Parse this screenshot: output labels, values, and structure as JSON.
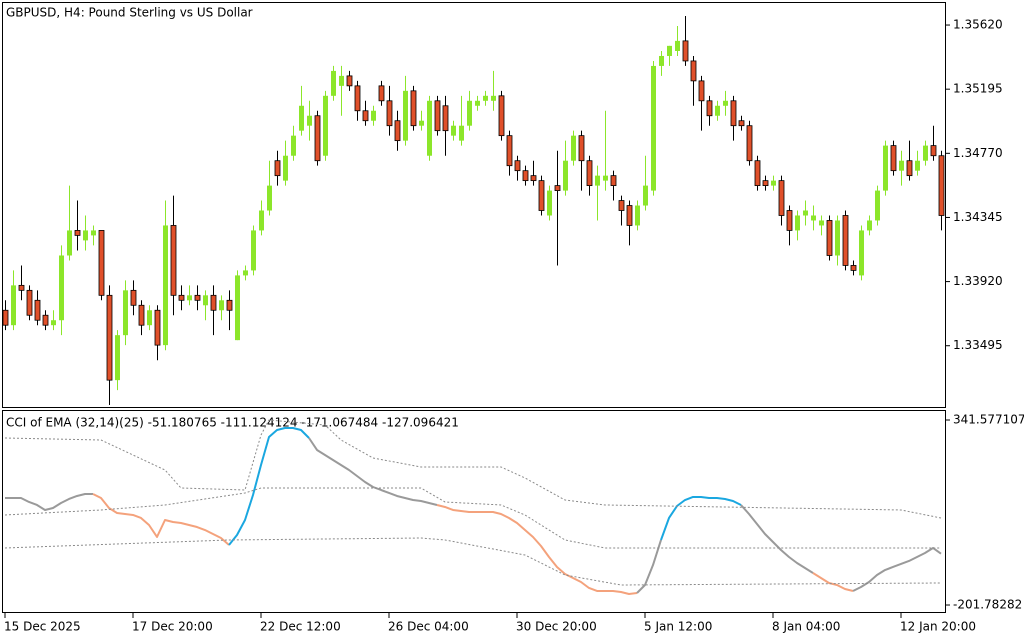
{
  "chart_data": [
    {
      "type": "candlestick",
      "title": "GBPUSD, H4:  Pound Sterling vs US Dollar",
      "categories": [
        "15 Dec 2025",
        null,
        null,
        null,
        null,
        null,
        null,
        null,
        null,
        null,
        null,
        null,
        null,
        null,
        null,
        null,
        "17 Dec 20:00",
        null,
        null,
        null,
        null,
        null,
        null,
        null,
        null,
        null,
        null,
        null,
        null,
        null,
        null,
        null,
        "22 Dec 12:00",
        null,
        null,
        null,
        null,
        null,
        null,
        null,
        null,
        null,
        null,
        null,
        null,
        null,
        null,
        null,
        "26 Dec 04:00",
        null,
        null,
        null,
        null,
        null,
        null,
        null,
        null,
        null,
        null,
        null,
        null,
        null,
        null,
        null,
        "30 Dec 20:00",
        null,
        null,
        null,
        null,
        null,
        null,
        null,
        null,
        null,
        null,
        null,
        null,
        null,
        null,
        null,
        "5 Jan 12:00",
        null,
        null,
        null,
        null,
        null,
        null,
        null,
        null,
        null,
        null,
        null,
        null,
        null,
        null,
        null,
        "8 Jan 04:00",
        null,
        null,
        null,
        null,
        null,
        null,
        null,
        null,
        null,
        null,
        null,
        null,
        null,
        null,
        null,
        "12 Jan 20:00",
        null,
        null,
        null,
        null,
        null
      ],
      "open": [
        1.3373,
        1.33631,
        1.33895,
        1.33862,
        1.33796,
        1.33697,
        1.33631,
        1.33664,
        1.34093,
        1.34259,
        1.34193,
        1.34226,
        1.34259,
        1.33829,
        1.33267,
        1.33565,
        1.33862,
        1.33763,
        1.33631,
        1.3373,
        1.33499,
        1.34292,
        1.33829,
        1.33796,
        1.33829,
        1.33763,
        1.33829,
        1.3373,
        1.33796,
        1.33532,
        1.33961,
        1.33994,
        1.34259,
        1.34391,
        1.34721,
        1.34589,
        1.34754,
        1.3492,
        1.34953,
        1.35019,
        1.34754,
        1.35151,
        1.35217,
        1.35283,
        1.35217,
        1.35052,
        1.34986,
        1.35217,
        1.35118,
        1.34986,
        1.34854,
        1.35184,
        1.34953,
        1.34754,
        1.35118,
        1.35085,
        1.34887,
        1.34854,
        1.34953,
        1.35085,
        1.35118,
        1.35118,
        1.35151,
        1.34887,
        1.34721,
        1.34655,
        1.34622,
        1.34589,
        1.34358,
        1.34556,
        1.34523,
        1.34721,
        1.34887,
        1.34721,
        1.34556,
        1.34589,
        1.34622,
        1.34457,
        1.34424,
        1.34292,
        1.34424,
        1.34523,
        1.35349,
        1.35415,
        1.35448,
        1.35515,
        1.35382,
        1.3525,
        1.35118,
        1.35019,
        1.35085,
        1.35118,
        1.34986,
        1.34953,
        1.34721,
        1.34589,
        1.34556,
        1.34589,
        1.34391,
        1.34259,
        1.34358,
        1.34325,
        1.34292,
        1.34325,
        1.34093,
        1.34358,
        1.34027,
        1.33961,
        1.34259,
        1.34325,
        1.34523,
        1.34821,
        1.34655,
        1.34721,
        1.34655,
        1.34721,
        1.34821,
        1.34754
      ],
      "high": [
        1.33796,
        1.33994,
        1.34027,
        1.33895,
        1.33862,
        1.3373,
        1.3373,
        1.3416,
        1.34556,
        1.34457,
        1.34358,
        1.34292,
        1.34259,
        1.33895,
        1.33598,
        1.33928,
        1.33928,
        1.33796,
        1.33763,
        1.33763,
        1.34457,
        1.3449,
        1.33895,
        1.33895,
        1.33895,
        1.33862,
        1.33895,
        1.33829,
        1.33862,
        1.33994,
        1.34027,
        1.34292,
        1.34457,
        1.34721,
        1.34787,
        1.34854,
        1.34953,
        1.35217,
        1.35118,
        1.35052,
        1.35184,
        1.35349,
        1.35349,
        1.35316,
        1.3525,
        1.35118,
        1.35085,
        1.3525,
        1.35217,
        1.35052,
        1.35283,
        1.35217,
        1.35052,
        1.35151,
        1.35151,
        1.35151,
        1.34986,
        1.35151,
        1.35184,
        1.35151,
        1.35184,
        1.35316,
        1.35184,
        1.3492,
        1.34754,
        1.34688,
        1.34721,
        1.34622,
        1.34556,
        1.34787,
        1.34854,
        1.3492,
        1.3492,
        1.34754,
        1.34688,
        1.35052,
        1.34655,
        1.3449,
        1.34457,
        1.34457,
        1.34754,
        1.35382,
        1.35448,
        1.35482,
        1.35614,
        1.3568,
        1.35415,
        1.35283,
        1.35151,
        1.35118,
        1.35184,
        1.35151,
        1.35019,
        1.34986,
        1.34754,
        1.34622,
        1.34622,
        1.34622,
        1.34424,
        1.34391,
        1.34457,
        1.34424,
        1.34358,
        1.34358,
        1.34358,
        1.34391,
        1.3406,
        1.34292,
        1.34358,
        1.34556,
        1.34854,
        1.34854,
        1.34787,
        1.34854,
        1.34787,
        1.34854,
        1.34953,
        1.34787
      ],
      "low": [
        1.33598,
        1.33598,
        1.33796,
        1.33664,
        1.33631,
        1.33598,
        1.33598,
        1.33565,
        1.3406,
        1.34126,
        1.34126,
        1.3416,
        1.33796,
        1.33102,
        1.33201,
        1.33499,
        1.33697,
        1.33565,
        1.33598,
        1.33399,
        1.33465,
        1.33697,
        1.3373,
        1.33763,
        1.3373,
        1.33664,
        1.33565,
        1.33664,
        1.33598,
        1.33532,
        1.33928,
        1.33961,
        1.34226,
        1.34358,
        1.34556,
        1.34556,
        1.34721,
        1.34887,
        1.34854,
        1.34688,
        1.34721,
        1.35118,
        1.35019,
        1.35184,
        1.34986,
        1.34953,
        1.34953,
        1.35085,
        1.34887,
        1.34787,
        1.34821,
        1.3492,
        1.3492,
        1.34721,
        1.34887,
        1.34754,
        1.34854,
        1.34821,
        1.3492,
        1.35052,
        1.35085,
        1.35052,
        1.34854,
        1.34622,
        1.34589,
        1.34556,
        1.34556,
        1.34358,
        1.34325,
        1.34027,
        1.3449,
        1.34688,
        1.34523,
        1.3449,
        1.34325,
        1.34523,
        1.34457,
        1.34292,
        1.3416,
        1.34259,
        1.34391,
        1.3449,
        1.35283,
        1.35349,
        1.35415,
        1.35349,
        1.35085,
        1.3492,
        1.34953,
        1.34986,
        1.35019,
        1.34854,
        1.3492,
        1.34688,
        1.34523,
        1.34523,
        1.34523,
        1.34292,
        1.3416,
        1.34193,
        1.34292,
        1.34259,
        1.34226,
        1.3406,
        1.34027,
        1.33994,
        1.33961,
        1.33928,
        1.34226,
        1.34292,
        1.3449,
        1.34622,
        1.34556,
        1.34589,
        1.34622,
        1.34688,
        1.34721,
        1.34259
      ],
      "close": [
        1.33631,
        1.33895,
        1.33862,
        1.33697,
        1.33664,
        1.33631,
        1.33664,
        1.34093,
        1.34259,
        1.34226,
        1.34259,
        1.34259,
        1.33829,
        1.33267,
        1.33565,
        1.33862,
        1.33763,
        1.33631,
        1.3373,
        1.33499,
        1.34292,
        1.33829,
        1.33796,
        1.33829,
        1.33796,
        1.33829,
        1.3373,
        1.33796,
        1.3373,
        1.33961,
        1.33994,
        1.34259,
        1.34391,
        1.34556,
        1.34622,
        1.34754,
        1.34887,
        1.35085,
        1.35019,
        1.34721,
        1.35151,
        1.35316,
        1.35283,
        1.35217,
        1.35052,
        1.34986,
        1.35052,
        1.35118,
        1.34953,
        1.34854,
        1.35184,
        1.34953,
        1.34986,
        1.35118,
        1.3492,
        1.3492,
        1.34953,
        1.34953,
        1.35118,
        1.35118,
        1.35151,
        1.35151,
        1.34887,
        1.34688,
        1.34655,
        1.34589,
        1.34589,
        1.34391,
        1.34523,
        1.34523,
        1.34721,
        1.34887,
        1.34721,
        1.34556,
        1.34622,
        1.34622,
        1.34556,
        1.34391,
        1.34292,
        1.34424,
        1.34556,
        1.35349,
        1.35415,
        1.35482,
        1.35515,
        1.35382,
        1.3525,
        1.35118,
        1.35019,
        1.35085,
        1.35118,
        1.34953,
        1.34953,
        1.34721,
        1.34556,
        1.34556,
        1.34589,
        1.34358,
        1.34259,
        1.34358,
        1.34391,
        1.34358,
        1.34325,
        1.34093,
        1.34325,
        1.34027,
        1.33994,
        1.34259,
        1.34325,
        1.34523,
        1.34821,
        1.34655,
        1.34721,
        1.34622,
        1.34721,
        1.34821,
        1.34754,
        1.34358
      ],
      "bull_color": "#8ce62a",
      "bear_color": "#e0502a",
      "bear_edge": "#000000",
      "ylim": [
        1.33089,
        1.35766
      ],
      "yticks": [
        {
          "value": 1.3562,
          "label": "1.35620"
        },
        1.35195,
        {
          "value": 1.3477,
          "label": "1.34770"
        },
        1.34345,
        {
          "value": 1.3392,
          "label": "1.33920"
        },
        1.33495
      ]
    },
    {
      "type": "indicator",
      "title": "CCI of EMA (32,14)(25) -51.180765 -111.124124 -171.067484 -127.096421",
      "ylim": [
        -222.3,
        368.0
      ],
      "yticks": [
        341.577107,
        -201.78282
      ],
      "series": [
        {
          "values": [
            112.5,
            112.5,
            112.5,
            100.8,
            92.0,
            77.3,
            83.1,
            97.8,
            109.6,
            118.4,
            124.3,
            124.3,
            112.5,
            83.1,
            68.5,
            65.5,
            62.6,
            53.8,
            33.2,
            -2.0,
            47.9,
            42.0,
            39.1,
            33.2,
            27.3,
            18.5,
            6.8,
            -5.0,
            -25.5,
            3.8,
            47.9,
            121.3,
            209.4,
            291.7,
            312.2,
            318.1,
            318.1,
            312.2,
            288.7,
            253.5,
            238.8,
            224.1,
            209.4,
            194.7,
            177.1,
            159.5,
            144.8,
            136.0,
            127.2,
            118.4,
            112.5,
            106.6,
            103.7,
            97.8,
            92.0,
            86.1,
            77.3,
            74.3,
            71.4,
            71.4,
            71.4,
            71.4,
            65.5,
            53.8,
            39.1,
            18.5,
            -2.0,
            -28.5,
            -60.8,
            -90.1,
            -110.7,
            -122.4,
            -134.2,
            -151.8,
            -160.6,
            -160.6,
            -160.6,
            -163.6,
            -169.4,
            -166.5,
            -143.0,
            -84.3,
            -10.8,
            53.8,
            89.0,
            106.6,
            115.5,
            115.5,
            112.5,
            112.5,
            109.6,
            103.7,
            92.0,
            65.5,
            36.2,
            6.8,
            -16.7,
            -40.2,
            -60.8,
            -78.4,
            -93.1,
            -107.8,
            -122.4,
            -137.1,
            -143.0,
            -154.8,
            -160.6,
            -148.9,
            -134.2,
            -113.6,
            -99.0,
            -90.1,
            -81.3,
            -72.5,
            -60.8,
            -49.0,
            -34.3,
            -51.180765
          ],
          "colors": [
            "#9a9a9a",
            "#9a9a9a",
            "#9a9a9a",
            "#9a9a9a",
            "#9a9a9a",
            "#9a9a9a",
            "#9a9a9a",
            "#9a9a9a",
            "#9a9a9a",
            "#9a9a9a",
            "#9a9a9a",
            "#9a9a9a",
            "#f4a27c",
            "#f4a27c",
            "#f4a27c",
            "#f4a27c",
            "#f4a27c",
            "#f4a27c",
            "#f4a27c",
            "#f4a27c",
            "#f4a27c",
            "#f4a27c",
            "#f4a27c",
            "#f4a27c",
            "#f4a27c",
            "#f4a27c",
            "#f4a27c",
            "#f4a27c",
            "#f4a27c",
            "#1aa7e0",
            "#1aa7e0",
            "#1aa7e0",
            "#1aa7e0",
            "#1aa7e0",
            "#1aa7e0",
            "#1aa7e0",
            "#1aa7e0",
            "#1aa7e0",
            "#1aa7e0",
            "#9a9a9a",
            "#9a9a9a",
            "#9a9a9a",
            "#9a9a9a",
            "#9a9a9a",
            "#9a9a9a",
            "#9a9a9a",
            "#9a9a9a",
            "#9a9a9a",
            "#9a9a9a",
            "#9a9a9a",
            "#9a9a9a",
            "#9a9a9a",
            "#9a9a9a",
            "#9a9a9a",
            "#9a9a9a",
            "#f4a27c",
            "#f4a27c",
            "#f4a27c",
            "#f4a27c",
            "#f4a27c",
            "#f4a27c",
            "#f4a27c",
            "#f4a27c",
            "#f4a27c",
            "#f4a27c",
            "#f4a27c",
            "#f4a27c",
            "#f4a27c",
            "#f4a27c",
            "#f4a27c",
            "#f4a27c",
            "#f4a27c",
            "#f4a27c",
            "#f4a27c",
            "#f4a27c",
            "#f4a27c",
            "#f4a27c",
            "#f4a27c",
            "#f4a27c",
            "#f4a27c",
            "#9a9a9a",
            "#9a9a9a",
            "#9a9a9a",
            "#1aa7e0",
            "#1aa7e0",
            "#1aa7e0",
            "#1aa7e0",
            "#1aa7e0",
            "#1aa7e0",
            "#1aa7e0",
            "#1aa7e0",
            "#1aa7e0",
            "#1aa7e0",
            "#9a9a9a",
            "#9a9a9a",
            "#9a9a9a",
            "#9a9a9a",
            "#9a9a9a",
            "#9a9a9a",
            "#9a9a9a",
            "#9a9a9a",
            "#9a9a9a",
            "#f4a27c",
            "#f4a27c",
            "#f4a27c",
            "#f4a27c",
            "#f4a27c",
            "#9a9a9a",
            "#9a9a9a",
            "#9a9a9a",
            "#9a9a9a",
            "#9a9a9a",
            "#9a9a9a",
            "#9a9a9a",
            "#9a9a9a",
            "#9a9a9a",
            "#9a9a9a",
            "#9a9a9a"
          ]
        },
        {
          "color": "#8a8a8a",
          "dashed": true,
          "x": [
            0,
            12,
            16,
            20,
            22,
            30,
            32,
            33,
            40,
            42,
            46,
            52,
            62,
            65,
            70,
            75,
            112,
            117
          ],
          "values": [
            288.7,
            282.8,
            238.8,
            194.7,
            141.9,
            136.0,
            297.5,
            341.6,
            326.9,
            282.8,
            230.0,
            203.6,
            203.6,
            171.3,
            106.6,
            92.0,
            77.3,
            53.8
          ]
        },
        {
          "color": "#8a8a8a",
          "dashed": true,
          "x": [
            0,
            12,
            20,
            30,
            32,
            52,
            55,
            62,
            65,
            70,
            75,
            117
          ],
          "values": [
            62.6,
            77.3,
            92.0,
            127.2,
            141.9,
            141.9,
            100.8,
            92.0,
            62.6,
            -10.8,
            -34.3,
            -34.3
          ]
        },
        {
          "color": "#8a8a8a",
          "dashed": true,
          "x": [
            0,
            28,
            52,
            55,
            65,
            70,
            77,
            117
          ],
          "values": [
            -34.3,
            -10.8,
            -5.0,
            -10.8,
            -54.9,
            -113.6,
            -143.0,
            -137.1
          ]
        }
      ]
    }
  ]
}
